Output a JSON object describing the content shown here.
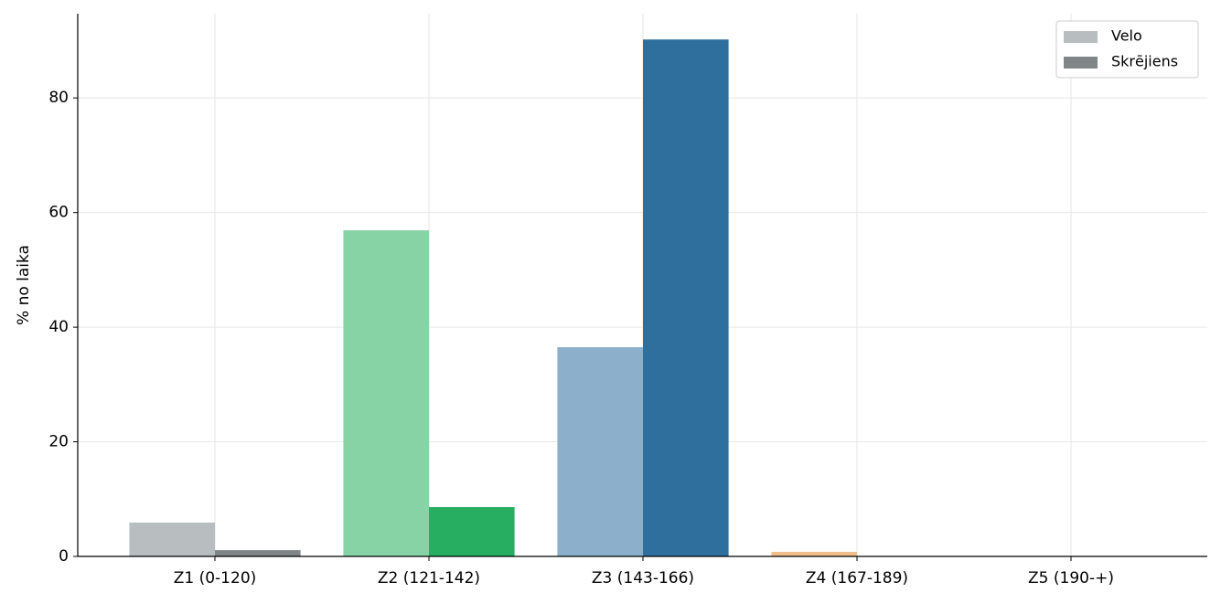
{
  "chart_data": {
    "type": "bar",
    "categories": [
      "Z1 (0-120)",
      "Z2 (121-142)",
      "Z3 (143-166)",
      "Z4 (167-189)",
      "Z5 (190-+)"
    ],
    "series": [
      {
        "name": "Velo",
        "color": "#b8bdc0",
        "colors": [
          "#b8bdc0",
          "#88d3a6",
          "#8cb0cb",
          "#f1c08a",
          "#df9c95"
        ],
        "values": [
          5.9,
          56.9,
          36.5,
          0.8,
          0
        ]
      },
      {
        "name": "Skrējiens",
        "color": "#808688",
        "colors": [
          "#808688",
          "#27ae60",
          "#2e6f9d",
          "#e67e22",
          "#c0392b"
        ],
        "values": [
          1.1,
          8.6,
          90.2,
          0,
          0
        ]
      }
    ],
    "y_label": "% no laika",
    "ylim": [
      0,
      94.7
    ],
    "yticks": [
      0,
      20,
      40,
      60,
      80
    ],
    "grid": true,
    "legend": "upper-right"
  }
}
